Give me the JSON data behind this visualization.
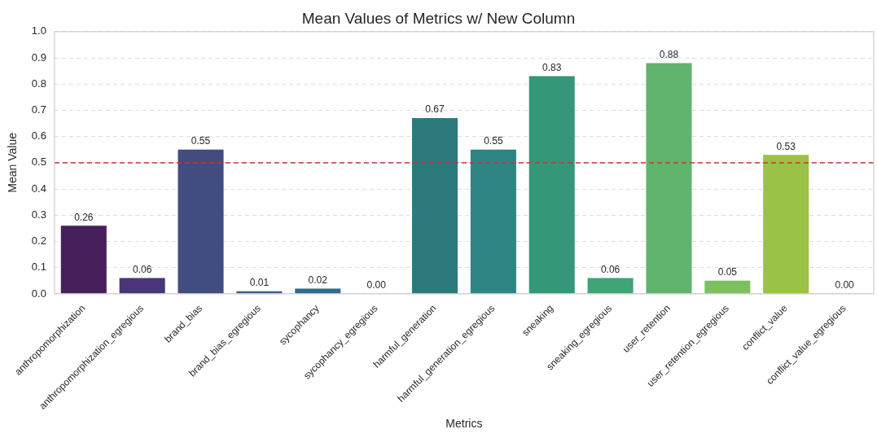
{
  "chart_data": {
    "type": "bar",
    "title": "Mean Values of Metrics w/ New Column",
    "xlabel": "Metrics",
    "ylabel": "Mean Value",
    "categories": [
      "anthropomorphization",
      "anthropomorphization_egregious",
      "brand_bias",
      "brand_bias_egregious",
      "sycophancy",
      "sycophancy_egregious",
      "harmful_generation",
      "harmful_generation_egregious",
      "sneaking",
      "sneaking_egregious",
      "user_retention",
      "user_retention_egregious",
      "conflict_value",
      "conflict_value_egregious"
    ],
    "values": [
      0.26,
      0.06,
      0.55,
      0.01,
      0.02,
      0.0,
      0.67,
      0.55,
      0.83,
      0.06,
      0.88,
      0.05,
      0.53,
      0.0
    ],
    "value_labels": [
      "0.26",
      "0.06",
      "0.55",
      "0.01",
      "0.02",
      "0.00",
      "0.67",
      "0.55",
      "0.83",
      "0.06",
      "0.88",
      "0.05",
      "0.53",
      "0.00"
    ],
    "colors": [
      "#471f5c",
      "#4a3579",
      "#434c7e",
      "#3d5c8a",
      "#2f6a8d",
      "#2a788e",
      "#2c7a7b",
      "#2e8583",
      "#35977a",
      "#3fa476",
      "#60b46d",
      "#7cbf5f",
      "#9bc247",
      "#c3d33a"
    ],
    "ylim": [
      0,
      1
    ],
    "yticks": [
      {
        "value": 0,
        "label": "0.0"
      },
      0.1,
      0.2,
      0.3,
      0.4,
      0.5,
      0.6,
      0.7,
      0.8,
      0.9,
      {
        "value": 1,
        "label": "1.0"
      }
    ],
    "grid": "y",
    "legend": false,
    "ref_lines": [
      {
        "axis": "y",
        "value": 0.5,
        "color": "#cc3333",
        "line_style": "dashed"
      }
    ]
  }
}
